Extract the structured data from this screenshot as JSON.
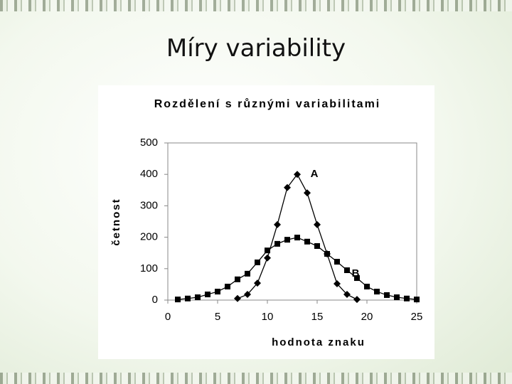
{
  "slide_title": "Míry variability",
  "chart_data": {
    "type": "line",
    "title": "Rozdělení s různými variabilitami",
    "x_label": "hodnota znaku",
    "y_label": "četnost",
    "xlim": [
      0,
      25
    ],
    "xticks": [
      0,
      5,
      10,
      15,
      20,
      25
    ],
    "ylim": [
      0,
      500
    ],
    "yticks": [
      0,
      100,
      200,
      300,
      400,
      500
    ],
    "grid": false,
    "series": [
      {
        "name": "A",
        "color": "#000000",
        "marker": "diamond",
        "x": [
          7,
          8,
          9,
          10,
          11,
          12,
          13,
          14,
          15,
          16,
          17,
          18,
          19
        ],
        "values": [
          5,
          18,
          54,
          134,
          240,
          358,
          400,
          341,
          240,
          147,
          52,
          18,
          2
        ]
      },
      {
        "name": "B",
        "color": "#000000",
        "marker": "square",
        "x": [
          1,
          2,
          3,
          4,
          5,
          6,
          7,
          8,
          9,
          10,
          11,
          12,
          13,
          14,
          15,
          16,
          17,
          18,
          19,
          20,
          21,
          22,
          23,
          24,
          25
        ],
        "values": [
          2,
          5,
          9,
          18,
          27,
          43,
          66,
          84,
          120,
          158,
          179,
          192,
          199,
          186,
          172,
          147,
          122,
          95,
          70,
          43,
          27,
          16,
          9,
          5,
          2
        ]
      }
    ]
  }
}
